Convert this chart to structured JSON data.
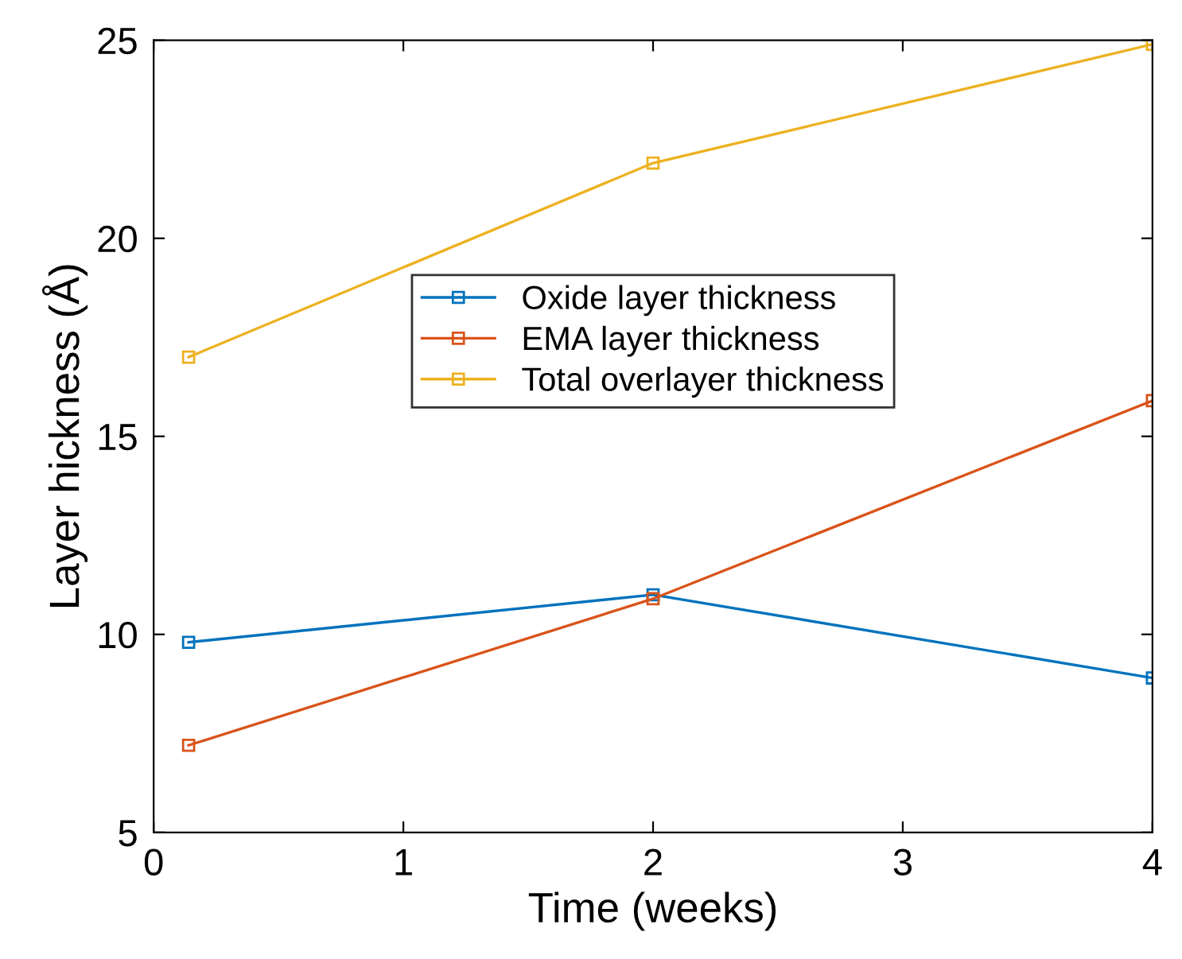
{
  "chart_data": {
    "type": "line",
    "xlabel": "Time (weeks)",
    "ylabel": "Layer hickness (Å)",
    "x": [
      0.14,
      2,
      4
    ],
    "series": [
      {
        "name": "Oxide layer thickness",
        "color": "#0072bd",
        "values": [
          9.8,
          11.0,
          8.9
        ]
      },
      {
        "name": "EMA layer thickness",
        "color": "#d95319",
        "values": [
          7.2,
          10.9,
          15.9
        ]
      },
      {
        "name": "Total overlayer thickness",
        "color": "#edb120",
        "values": [
          17.0,
          21.9,
          24.9
        ]
      }
    ],
    "xlim": [
      0,
      4
    ],
    "xticks": [
      0,
      1,
      2,
      3,
      4
    ],
    "ylim": [
      5,
      25
    ],
    "yticks": [
      5,
      10,
      15,
      20,
      25
    ],
    "grid": false,
    "legend": "center",
    "marker": "square",
    "line_style": "solid"
  }
}
